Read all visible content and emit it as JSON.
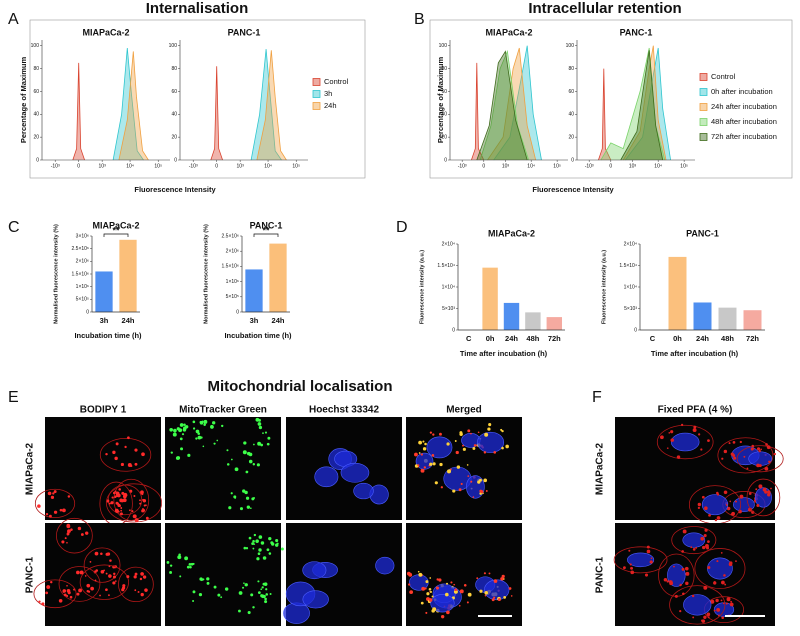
{
  "panel_labels": [
    "A",
    "B",
    "C",
    "D",
    "E",
    "F"
  ],
  "chart_data": [
    {
      "type": "area",
      "title": "Internalisation",
      "ylabel": "Percentage of Maximum",
      "xlabel": "Fluorescence Intensity",
      "xscale": "biexponential",
      "xlim": [
        -3000,
        262144
      ],
      "xticks": [
        {
          "value": -1000,
          "label": "-10³"
        },
        0,
        {
          "value": 1000,
          "label": "10³"
        },
        {
          "value": 10000,
          "label": "10⁴"
        },
        {
          "value": 100000,
          "label": "10⁵"
        }
      ],
      "ylim": [
        0,
        105
      ],
      "yticks": [
        0,
        20,
        40,
        60,
        80,
        100
      ],
      "legend": [
        {
          "name": "Control",
          "color": "#d9432f"
        },
        {
          "name": "3h",
          "color": "#2fc6cf"
        },
        {
          "name": "24h",
          "color": "#f0a040"
        }
      ],
      "panels": [
        {
          "title": "MIAPaCa-2",
          "series": [
            {
              "x": [
                -150,
                -50,
                0,
                50,
                150
              ],
              "values": [
                0,
                10,
                85,
                10,
                0
              ]
            },
            {
              "x": [
                2500,
                5000,
                8000,
                11000,
                18000,
                30000
              ],
              "values": [
                0,
                40,
                98,
                60,
                8,
                0
              ]
            },
            {
              "x": [
                4000,
                8000,
                13000,
                17000,
                28000,
                45000
              ],
              "values": [
                0,
                35,
                95,
                55,
                8,
                0
              ]
            }
          ]
        },
        {
          "title": "PANC-1",
          "series": [
            {
              "x": [
                -150,
                -50,
                0,
                50,
                150
              ],
              "values": [
                0,
                10,
                82,
                10,
                0
              ]
            },
            {
              "x": [
                2500,
                5000,
                8500,
                12000,
                18000,
                30000
              ],
              "values": [
                0,
                40,
                97,
                55,
                8,
                0
              ]
            },
            {
              "x": [
                4000,
                8000,
                13000,
                18000,
                28000,
                45000
              ],
              "values": [
                0,
                35,
                96,
                55,
                8,
                0
              ]
            }
          ]
        }
      ]
    },
    {
      "type": "area",
      "title": "Intracellular retention",
      "ylabel": "Percentage of Maximum",
      "xlabel": "Fluorescence Intensity",
      "xscale": "biexponential",
      "xlim": [
        -3000,
        262144
      ],
      "xticks": [
        {
          "value": -1000,
          "label": "-10³"
        },
        0,
        {
          "value": 1000,
          "label": "10³"
        },
        {
          "value": 10000,
          "label": "10⁴"
        },
        {
          "value": 100000,
          "label": "10⁵"
        }
      ],
      "ylim": [
        0,
        105
      ],
      "yticks": [
        0,
        20,
        40,
        60,
        80,
        100
      ],
      "legend": [
        {
          "name": "Control",
          "color": "#d9432f"
        },
        {
          "name": "0h after incubation",
          "color": "#2fc6cf"
        },
        {
          "name": "24h after incubation",
          "color": "#f0a040"
        },
        {
          "name": "48h after incubation",
          "color": "#7ad36a"
        },
        {
          "name": "72h after incubation",
          "color": "#3f6b1c"
        }
      ],
      "panels": [
        {
          "title": "MIAPaCa-2",
          "series": [
            {
              "x": [
                -400,
                -250,
                -200,
                -150,
                0
              ],
              "values": [
                0,
                10,
                85,
                10,
                0
              ]
            },
            {
              "x": [
                300,
                1500,
                4000,
                7000,
                12000,
                25000
              ],
              "values": [
                0,
                20,
                70,
                100,
                40,
                0
              ]
            },
            {
              "x": [
                100,
                800,
                2000,
                3500,
                7000,
                15000
              ],
              "values": [
                0,
                20,
                80,
                98,
                30,
                0
              ]
            },
            {
              "x": [
                -100,
                200,
                600,
                1200,
                3000,
                8000
              ],
              "values": [
                0,
                30,
                80,
                95,
                30,
                0
              ]
            },
            {
              "x": [
                -200,
                150,
                500,
                1000,
                2500,
                7000
              ],
              "values": [
                0,
                30,
                85,
                95,
                35,
                0
              ]
            }
          ]
        },
        {
          "title": "PANC-1",
          "series": [
            {
              "x": [
                -400,
                -250,
                -200,
                -150,
                0
              ],
              "values": [
                0,
                10,
                80,
                10,
                0
              ]
            },
            {
              "x": [
                500,
                2500,
                6000,
                10000,
                15000,
                30000
              ],
              "values": [
                0,
                20,
                70,
                98,
                45,
                0
              ]
            },
            {
              "x": [
                400,
                2000,
                4500,
                6500,
                10000,
                20000
              ],
              "values": [
                0,
                25,
                80,
                100,
                35,
                0
              ]
            },
            {
              "x": [
                -300,
                0,
                400,
                2000,
                4500,
                8000,
                18000
              ],
              "values": [
                0,
                15,
                10,
                60,
                98,
                30,
                0
              ]
            },
            {
              "x": [
                300,
                1500,
                3000,
                4500,
                8000,
                15000
              ],
              "values": [
                0,
                25,
                70,
                96,
                30,
                0
              ]
            }
          ]
        }
      ]
    },
    {
      "type": "bar",
      "panels": [
        {
          "title": "MIAPaCa-2",
          "ylabel": "Normalised fluorescence intensity (%)",
          "xlabel": "Incubation time (h)",
          "categories": [
            "3h",
            "24h"
          ],
          "values": [
            1600000,
            2850000
          ],
          "colors": [
            "#4f8ff0",
            "#fbbf7a"
          ],
          "ylim": [
            0,
            3000000
          ],
          "yticks": [
            0,
            {
              "value": 500000,
              "label": "5×10⁵"
            },
            {
              "value": 1000000,
              "label": "1×10⁶"
            },
            {
              "value": 1500000,
              "label": "1.5×10⁶"
            },
            {
              "value": 2000000,
              "label": "2×10⁶"
            },
            {
              "value": 2500000,
              "label": "2.5×10⁶"
            },
            {
              "value": 3000000,
              "label": "3×10⁶"
            }
          ],
          "annotation": "**"
        },
        {
          "title": "PANC-1",
          "ylabel": "Normalised fluorescence intensity (%)",
          "xlabel": "Incubation time (h)",
          "categories": [
            "3h",
            "24h"
          ],
          "values": [
            1400000,
            2250000
          ],
          "colors": [
            "#4f8ff0",
            "#fbbf7a"
          ],
          "ylim": [
            0,
            2500000
          ],
          "yticks": [
            0,
            {
              "value": 500000,
              "label": "5×10⁵"
            },
            {
              "value": 1000000,
              "label": "1×10⁶"
            },
            {
              "value": 1500000,
              "label": "1.5×10⁶"
            },
            {
              "value": 2000000,
              "label": "2×10⁶"
            },
            {
              "value": 2500000,
              "label": "2.5×10⁶"
            }
          ],
          "annotation": "**"
        }
      ]
    },
    {
      "type": "bar",
      "panels": [
        {
          "title": "MIAPaCa-2",
          "ylabel": "Fluorescence intensity (a.u.)",
          "xlabel": "Time after incubation (h)",
          "categories": [
            "C",
            "0h",
            "24h",
            "48h",
            "72h"
          ],
          "values": [
            0,
            14500,
            6300,
            4100,
            3000
          ],
          "colors": [
            "#9e9e9e",
            "#fbc07d",
            "#4f8ff0",
            "#c8c8c8",
            "#f5aaa0"
          ],
          "ylim": [
            0,
            20000
          ],
          "yticks": [
            0,
            {
              "value": 5000,
              "label": "5×10³"
            },
            {
              "value": 10000,
              "label": "1×10⁴"
            },
            {
              "value": 15000,
              "label": "1.5×10⁴"
            },
            {
              "value": 20000,
              "label": "2×10⁴"
            }
          ]
        },
        {
          "title": "PANC-1",
          "ylabel": "Fluorescence intensity (a.u.)",
          "xlabel": "Time after incubation (h)",
          "categories": [
            "C",
            "0h",
            "24h",
            "48h",
            "72h"
          ],
          "values": [
            0,
            17000,
            6400,
            5200,
            4600
          ],
          "colors": [
            "#9e9e9e",
            "#fbc07d",
            "#4f8ff0",
            "#c8c8c8",
            "#f5aaa0"
          ],
          "ylim": [
            0,
            20000
          ],
          "yticks": [
            0,
            {
              "value": 5000,
              "label": "5×10³"
            },
            {
              "value": 10000,
              "label": "1×10⁴"
            },
            {
              "value": 15000,
              "label": "1.5×10⁴"
            },
            {
              "value": 20000,
              "label": "2×10⁴"
            }
          ]
        }
      ]
    }
  ],
  "images": {
    "title": "Mitochondrial localisation",
    "columns": [
      "BODIPY 1",
      "MitoTracker Green",
      "Hoechst 33342",
      "Merged"
    ],
    "rows": [
      "MIAPaCa-2",
      "PANC-1"
    ]
  },
  "fixed": {
    "title": "Fixed PFA (4 %)",
    "rows": [
      "MIAPaCa-2",
      "PANC-1"
    ]
  }
}
